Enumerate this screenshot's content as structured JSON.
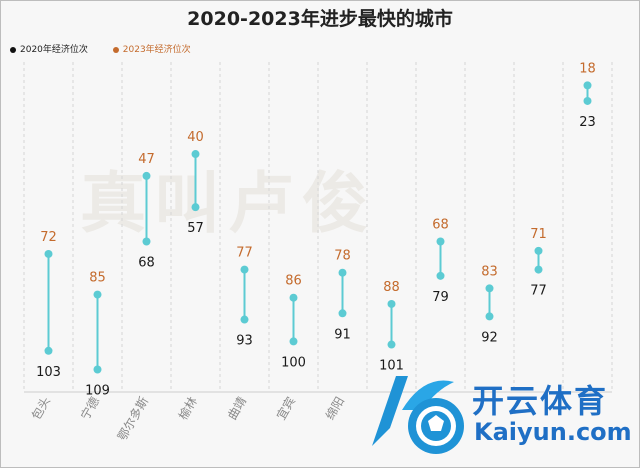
{
  "title": "2020-2023年进步最快的城市",
  "legend": {
    "series_2020": "2020年经济位次",
    "series_2023": "2023年经济位次"
  },
  "colors": {
    "marker": "#5ccbd3",
    "line": "#5ccbd3",
    "label_2020": "#1a1a1a",
    "label_2023": "#c46b2d",
    "legend_2020": "#111111",
    "legend_2023": "#c46b2d"
  },
  "watermark": "真叫卢俊",
  "brand": {
    "logo_text": "开云体育",
    "url_text": "Kaiyun.com"
  },
  "chart_data": {
    "type": "dumbbell",
    "title": "2020-2023年进步最快的城市",
    "categories": [
      "包头",
      "宁德",
      "鄂尔多斯",
      "榆林",
      "曲靖",
      "宜宾",
      "绵阳",
      "",
      "",
      "",
      "",
      ""
    ],
    "series": [
      {
        "name": "2020年经济位次",
        "values": [
          103,
          109,
          68,
          57,
          93,
          100,
          91,
          101,
          79,
          92,
          77,
          23
        ]
      },
      {
        "name": "2023年经济位次",
        "values": [
          72,
          85,
          47,
          40,
          77,
          86,
          78,
          88,
          68,
          83,
          71,
          18
        ]
      }
    ],
    "y_axis": {
      "inverted": true,
      "range": [
        15,
        113
      ]
    },
    "grid": "vertical-dashed"
  }
}
